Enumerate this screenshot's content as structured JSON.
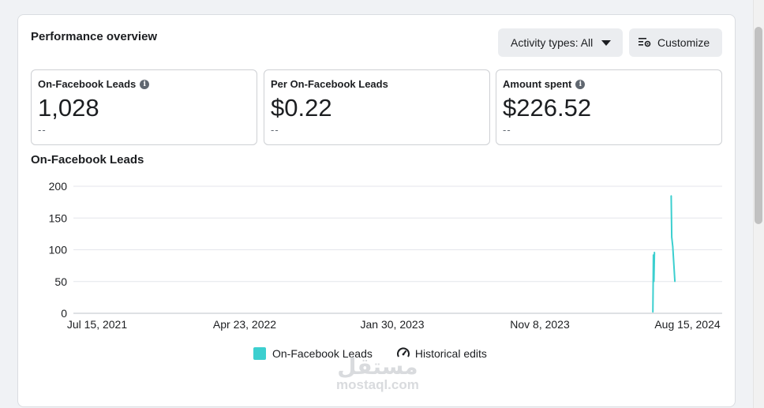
{
  "header": {
    "title": "Performance overview",
    "activity_label": "Activity types: All",
    "customize_label": "Customize"
  },
  "metrics": [
    {
      "label": "On-Facebook Leads",
      "value": "1,028",
      "sub": "--",
      "info": true
    },
    {
      "label": "Per On-Facebook Leads",
      "value": "$0.22",
      "sub": "--",
      "info": false
    },
    {
      "label": "Amount spent",
      "value": "$226.52",
      "sub": "--",
      "info": true
    }
  ],
  "chart_title": "On-Facebook Leads",
  "legend": {
    "series": "On-Facebook Leads",
    "edits": "Historical edits"
  },
  "watermark": {
    "arabic": "مستقل",
    "latin": "mostaql.com"
  },
  "colors": {
    "series": "#3ccfcf",
    "grid": "#e4e6eb"
  },
  "chart_data": {
    "type": "line",
    "title": "On-Facebook Leads",
    "xlabel": "",
    "ylabel": "",
    "ylim": [
      0,
      200
    ],
    "yticks": [
      "0",
      "50",
      "100",
      "150",
      "200"
    ],
    "xticks": [
      "Jul 15, 2021",
      "Apr 23, 2022",
      "Jan 30, 2023",
      "Nov 8, 2023",
      "Aug 15, 2024"
    ],
    "xrange": [
      "2021-07-15",
      "2024-08-15"
    ],
    "grid": true,
    "legend_position": "bottom",
    "series": [
      {
        "name": "On-Facebook Leads",
        "points": [
          {
            "date": "2024-06-10",
            "value": 2
          },
          {
            "date": "2024-06-11",
            "value": 92
          },
          {
            "date": "2024-06-12",
            "value": 50
          },
          {
            "date": "2024-06-13",
            "value": 96
          },
          {
            "date": "2024-07-15",
            "value": 185
          },
          {
            "date": "2024-07-16",
            "value": 120
          },
          {
            "date": "2024-07-18",
            "value": 105
          },
          {
            "date": "2024-07-22",
            "value": 50
          }
        ]
      }
    ]
  }
}
